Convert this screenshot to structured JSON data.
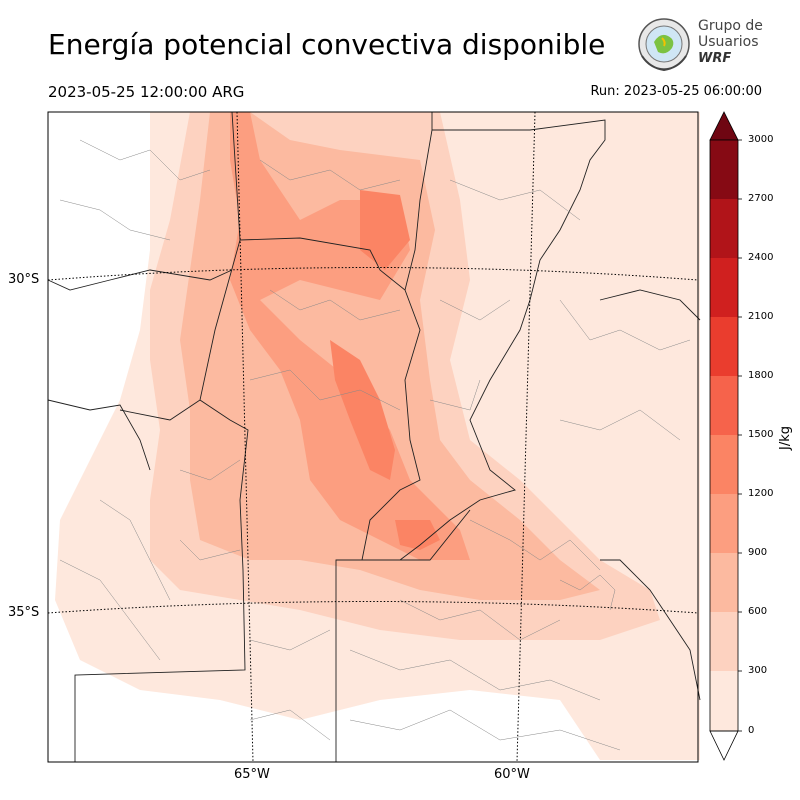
{
  "title": "Energía potencial convectiva disponible",
  "valid_time": "2023-05-25 12:00:00 ARG",
  "run_time": "Run: 2023-05-25 06:00:00",
  "logo": {
    "line1": "Grupo de",
    "line2": "Usuarios",
    "line3": "WRF",
    "icon": "globe-emblem-icon"
  },
  "map": {
    "latitude_labels": [
      "30°S",
      "35°S"
    ],
    "longitude_labels": [
      "65°W",
      "60°W"
    ]
  },
  "colorbar": {
    "label": "J/kg",
    "ticks": [
      "0",
      "300",
      "600",
      "900",
      "1200",
      "1500",
      "1800",
      "2100",
      "2400",
      "2700",
      "3000"
    ],
    "colors": [
      "#fee8dd",
      "#fdd2c0",
      "#fcbaa0",
      "#fc9e80",
      "#fb8464",
      "#f6634b",
      "#ea3d2e",
      "#d0201f",
      "#b11419",
      "#860a14",
      "#6f0612"
    ],
    "extend": "both"
  }
}
